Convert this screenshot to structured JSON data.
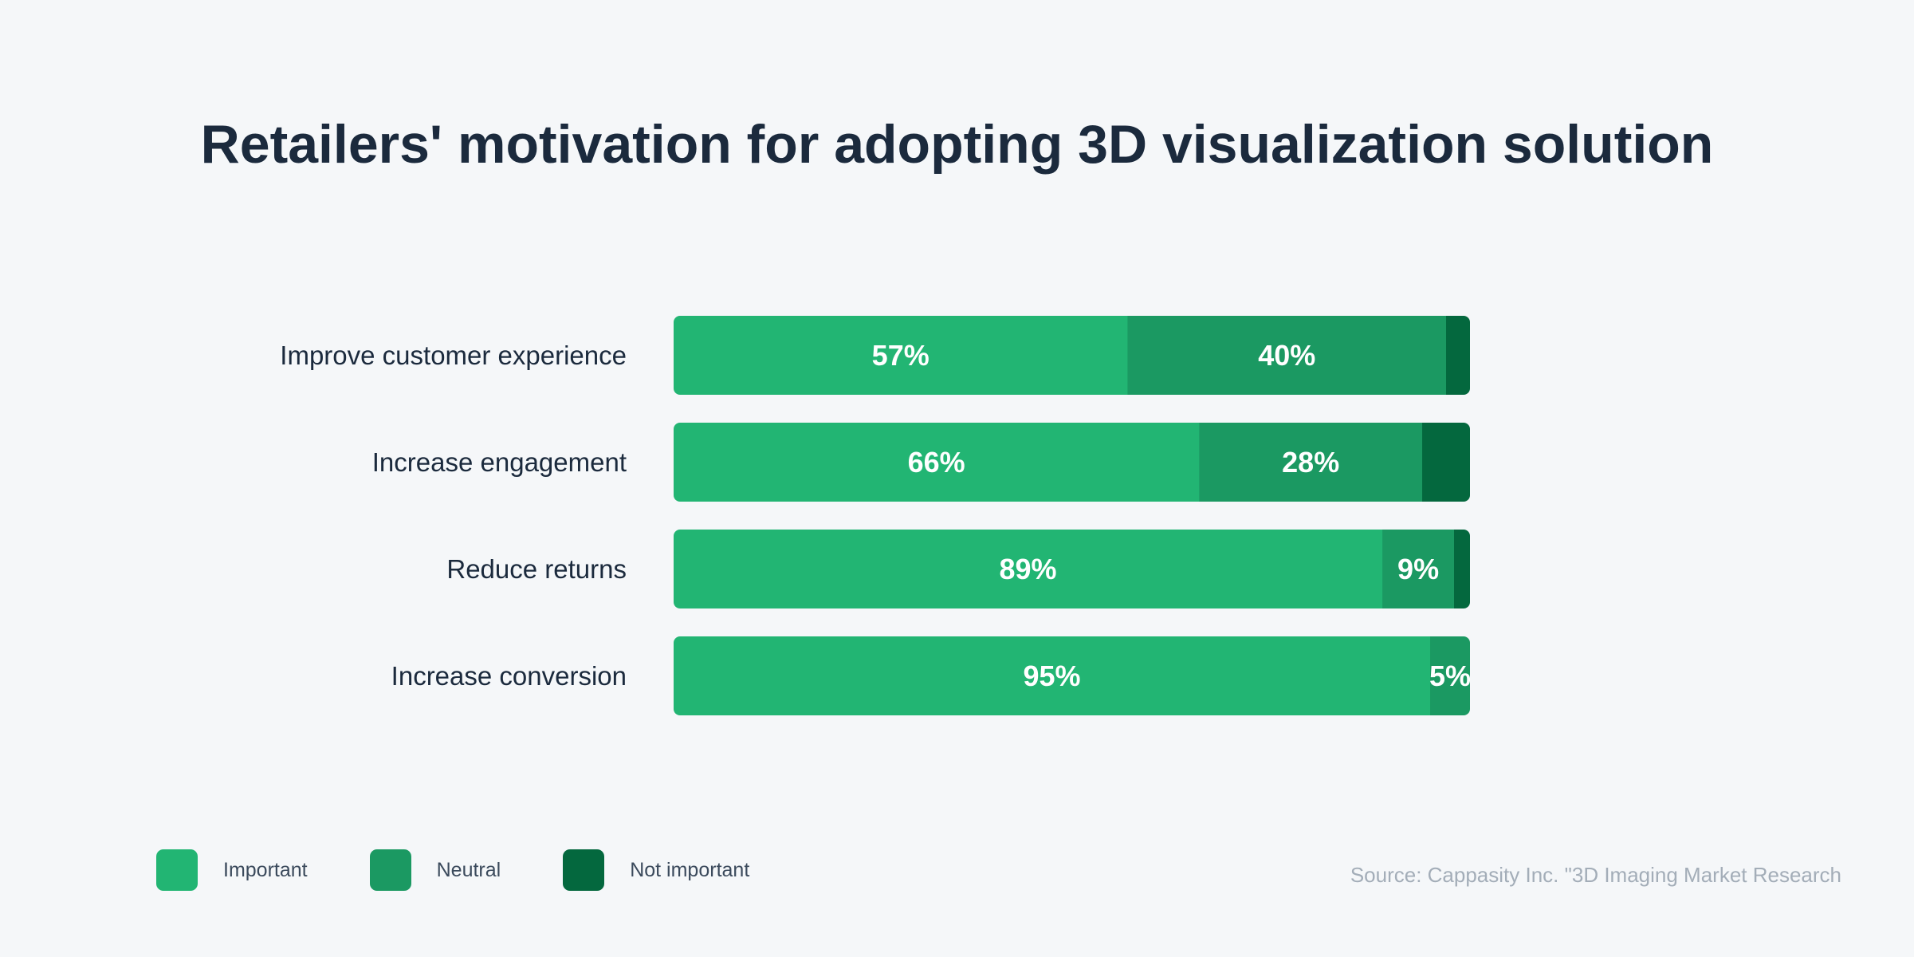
{
  "chart_data": {
    "type": "bar",
    "orientation": "horizontal",
    "stacked": true,
    "title": "Retailers' motivation for adopting 3D visualization solution",
    "categories": [
      "Improve customer experience",
      "Increase engagement",
      "Reduce returns",
      "Increase conversion"
    ],
    "series": [
      {
        "name": "Important",
        "values": [
          57,
          66,
          89,
          95
        ],
        "labels": [
          "57%",
          "66%",
          "89%",
          "95%"
        ],
        "color": "#22b573"
      },
      {
        "name": "Neutral",
        "values": [
          40,
          28,
          9,
          5
        ],
        "labels": [
          "40%",
          "28%",
          "9%",
          "5%"
        ],
        "color": "#1b9962"
      },
      {
        "name": "Not important",
        "values": [
          3,
          6,
          2,
          0
        ],
        "labels": [
          "",
          "",
          "",
          ""
        ],
        "color": "#04683e"
      }
    ],
    "xlim": [
      0,
      100
    ],
    "grid": false,
    "legend_position": "bottom-left",
    "source": "Source: Cappasity Inc. \"3D Imaging Market Research"
  }
}
